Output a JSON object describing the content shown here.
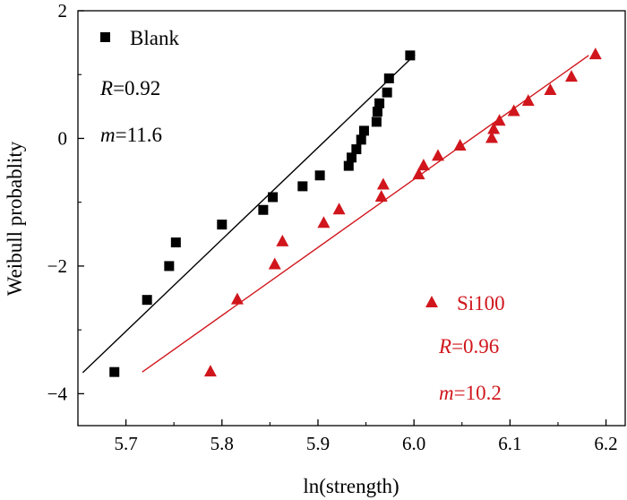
{
  "chart_data": {
    "type": "scatter",
    "xlabel": "ln(strength)",
    "ylabel": "Weibull probablity",
    "xlim": [
      5.65,
      6.22
    ],
    "ylim": [
      -4.5,
      2.0
    ],
    "xticks": [
      {
        "value": 5.7,
        "label": "5.7"
      },
      {
        "value": 5.8,
        "label": "5.8"
      },
      {
        "value": 5.9,
        "label": "5.9"
      },
      {
        "value": 6.0,
        "label": "6.0"
      },
      {
        "value": 6.1,
        "label": "6.1"
      },
      {
        "value": 6.2,
        "label": "6.2"
      }
    ],
    "yticks": [
      {
        "value": 2,
        "label": "2"
      },
      {
        "value": 0,
        "label": "0"
      },
      {
        "value": -2,
        "label": "−2"
      },
      {
        "value": -4,
        "label": "−4"
      }
    ],
    "grid": false,
    "series": [
      {
        "name": "Blank",
        "marker": "square",
        "color": "#000000",
        "points": [
          {
            "x": 5.688,
            "y": -3.66
          },
          {
            "x": 5.722,
            "y": -2.53
          },
          {
            "x": 5.745,
            "y": -2.0
          },
          {
            "x": 5.752,
            "y": -1.63
          },
          {
            "x": 5.8,
            "y": -1.35
          },
          {
            "x": 5.843,
            "y": -1.12
          },
          {
            "x": 5.853,
            "y": -0.92
          },
          {
            "x": 5.884,
            "y": -0.75
          },
          {
            "x": 5.902,
            "y": -0.58
          },
          {
            "x": 5.932,
            "y": -0.43
          },
          {
            "x": 5.935,
            "y": -0.3
          },
          {
            "x": 5.94,
            "y": -0.17
          },
          {
            "x": 5.945,
            "y": -0.02
          },
          {
            "x": 5.948,
            "y": 0.12
          },
          {
            "x": 5.961,
            "y": 0.26
          },
          {
            "x": 5.962,
            "y": 0.42
          },
          {
            "x": 5.964,
            "y": 0.55
          },
          {
            "x": 5.972,
            "y": 0.72
          },
          {
            "x": 5.974,
            "y": 0.94
          },
          {
            "x": 5.996,
            "y": 1.3
          }
        ],
        "fit": {
          "x": [
            5.655,
            6.001
          ],
          "y": [
            -3.67,
            1.31
          ]
        },
        "annotations": {
          "label": "Blank",
          "r_label": "R",
          "r_value": "=0.92",
          "m_label": "m",
          "m_value": "=11.6"
        }
      },
      {
        "name": "Si100",
        "marker": "triangle",
        "color": "#d0161c",
        "points": [
          {
            "x": 5.788,
            "y": -3.66
          },
          {
            "x": 5.816,
            "y": -2.53
          },
          {
            "x": 5.855,
            "y": -1.98
          },
          {
            "x": 5.863,
            "y": -1.62
          },
          {
            "x": 5.906,
            "y": -1.33
          },
          {
            "x": 5.922,
            "y": -1.12
          },
          {
            "x": 5.966,
            "y": -0.92
          },
          {
            "x": 5.968,
            "y": -0.73
          },
          {
            "x": 6.005,
            "y": -0.57
          },
          {
            "x": 6.01,
            "y": -0.43
          },
          {
            "x": 6.025,
            "y": -0.28
          },
          {
            "x": 6.048,
            "y": -0.12
          },
          {
            "x": 6.081,
            "y": 0.0
          },
          {
            "x": 6.083,
            "y": 0.14
          },
          {
            "x": 6.089,
            "y": 0.27
          },
          {
            "x": 6.104,
            "y": 0.42
          },
          {
            "x": 6.119,
            "y": 0.58
          },
          {
            "x": 6.142,
            "y": 0.75
          },
          {
            "x": 6.164,
            "y": 0.96
          },
          {
            "x": 6.189,
            "y": 1.31
          }
        ],
        "fit": {
          "x": [
            5.717,
            6.182
          ],
          "y": [
            -3.66,
            1.3
          ]
        },
        "annotations": {
          "label": "Si100",
          "r_label": "R",
          "r_value": "=0.96",
          "m_label": "m",
          "m_value": "=10.2"
        }
      }
    ]
  }
}
